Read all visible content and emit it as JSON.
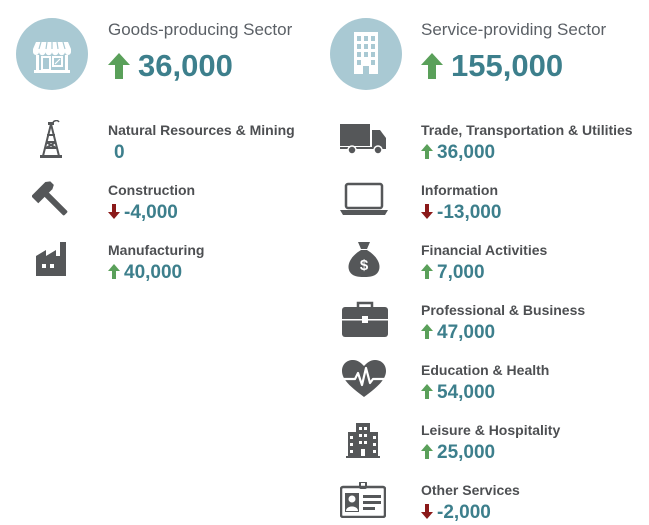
{
  "colors": {
    "circle_bg": "#a9c9d3",
    "value_text": "#3d7f8c",
    "up_arrow": "#5aa05a",
    "down_arrow": "#8b1a1a",
    "icon_gray": "#555759"
  },
  "goods": {
    "title": "Goods-producing Sector",
    "value": "36,000",
    "direction": "up",
    "icon": "storefront-icon",
    "items": [
      {
        "label": "Natural Resources & Mining",
        "value": "0",
        "direction": "none",
        "icon": "oil-derrick-icon"
      },
      {
        "label": "Construction",
        "value": "-4,000",
        "direction": "down",
        "icon": "hammer-icon"
      },
      {
        "label": "Manufacturing",
        "value": "40,000",
        "direction": "up",
        "icon": "factory-icon"
      }
    ]
  },
  "services": {
    "title": "Service-providing Sector",
    "value": "155,000",
    "direction": "up",
    "icon": "office-building-icon",
    "items": [
      {
        "label": "Trade, Transportation & Utilities",
        "value": "36,000",
        "direction": "up",
        "icon": "truck-icon"
      },
      {
        "label": "Information",
        "value": "-13,000",
        "direction": "down",
        "icon": "laptop-icon"
      },
      {
        "label": "Financial Activities",
        "value": "7,000",
        "direction": "up",
        "icon": "money-bag-icon"
      },
      {
        "label": "Professional & Business",
        "value": "47,000",
        "direction": "up",
        "icon": "briefcase-icon"
      },
      {
        "label": "Education & Health",
        "value": "54,000",
        "direction": "up",
        "icon": "heartbeat-icon"
      },
      {
        "label": "Leisure & Hospitality",
        "value": "25,000",
        "direction": "up",
        "icon": "hotel-icon"
      },
      {
        "label": "Other Services",
        "value": "-2,000",
        "direction": "down",
        "icon": "id-card-icon"
      }
    ]
  }
}
